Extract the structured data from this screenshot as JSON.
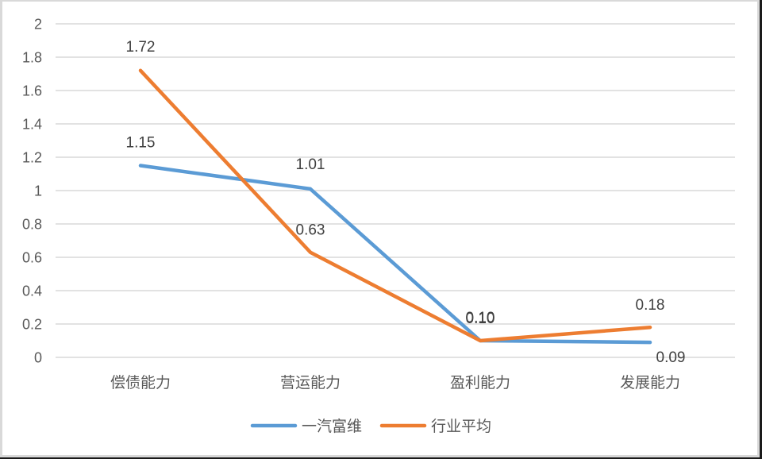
{
  "chart_data": {
    "type": "line",
    "title": "",
    "xlabel": "",
    "ylabel": "",
    "categories": [
      "偿债能力",
      "营运能力",
      "盈利能力",
      "发展能力"
    ],
    "series": [
      {
        "name": "一汽富维",
        "color": "#5B9BD5",
        "values": [
          1.15,
          1.01,
          0.1,
          0.09
        ],
        "labels": [
          "1.15",
          "1.01",
          "0.10",
          "0.09"
        ]
      },
      {
        "name": "行业平均",
        "color": "#ED7D31",
        "values": [
          1.72,
          0.63,
          0.1,
          0.18
        ],
        "labels": [
          "1.72",
          "0.63",
          "0.10",
          "0.18"
        ]
      }
    ],
    "ylim": [
      0,
      2
    ],
    "yticks": [
      "0",
      "0.2",
      "0.4",
      "0.6",
      "0.8",
      "1",
      "1.2",
      "1.4",
      "1.6",
      "1.8",
      "2"
    ],
    "grid": true,
    "legend_position": "bottom"
  },
  "legend": {
    "items": [
      {
        "label": "一汽富维",
        "color": "#5B9BD5"
      },
      {
        "label": "行业平均",
        "color": "#ED7D31"
      }
    ]
  }
}
